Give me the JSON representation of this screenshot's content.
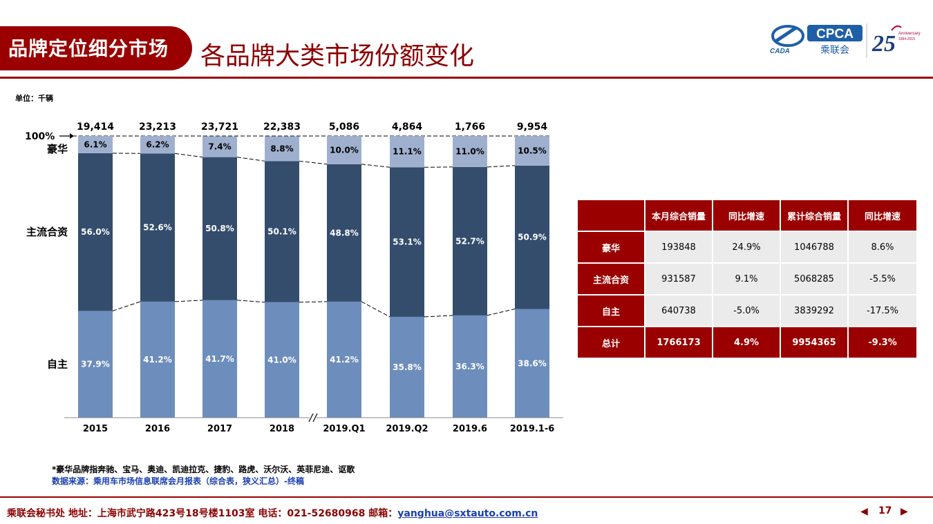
{
  "header": {
    "section_tag": "品牌定位细分市场",
    "title": "各品牌大类市场份额变化",
    "logo_cpca_text": "CPCA",
    "logo_cpca_sub": "乘联会",
    "logo_cada_text": "CADA",
    "logo_anniv_number": "25",
    "logo_anniv_text": "Anniversary",
    "logo_anniv_years": "1994-2019",
    "colors": {
      "brand_red": "#9a0000",
      "title_red": "#8b0000"
    }
  },
  "unit_label": "单位：千辆",
  "chart_data": {
    "type": "bar",
    "stacked": true,
    "normalized": true,
    "categories": [
      "2015",
      "2016",
      "2017",
      "2018",
      "2019.Q1",
      "2019.Q2",
      "2019.6",
      "2019.1-6"
    ],
    "totals": [
      "19,414",
      "23,213",
      "23,721",
      "22,383",
      "5,086",
      "4,864",
      "1,766",
      "9,954"
    ],
    "series": [
      {
        "name": "自主",
        "values": [
          37.9,
          41.2,
          41.7,
          41.0,
          41.2,
          35.8,
          36.3,
          38.6
        ],
        "color": "#6d8ebc"
      },
      {
        "name": "主流合资",
        "values": [
          56.0,
          52.6,
          50.8,
          50.1,
          48.8,
          53.1,
          52.7,
          50.9
        ],
        "color": "#344d6d"
      },
      {
        "name": "豪华",
        "values": [
          6.1,
          6.2,
          7.4,
          8.8,
          10.0,
          11.1,
          11.0,
          10.5
        ],
        "color": "#9fb0cf"
      }
    ],
    "top_marker": "100%",
    "axis_break_after": "2018",
    "ylim": [
      0,
      100
    ]
  },
  "table": {
    "headers": [
      "",
      "本月综合销量",
      "同比增速",
      "累计综合销量",
      "同比增速"
    ],
    "rows": [
      {
        "label": "豪华",
        "cells": [
          "193848",
          "24.9%",
          "1046788",
          "8.6%"
        ]
      },
      {
        "label": "主流合资",
        "cells": [
          "931587",
          "9.1%",
          "5068285",
          "-5.5%"
        ]
      },
      {
        "label": "自主",
        "cells": [
          "640738",
          "-5.0%",
          "3839292",
          "-17.5%"
        ]
      },
      {
        "label": "总计",
        "cells": [
          "1766173",
          "4.9%",
          "9954365",
          "-9.3%"
        ]
      }
    ]
  },
  "footnote": "*豪华品牌指奔驰、宝马、奥迪、凯迪拉克、捷豹、路虎、沃尔沃、英菲尼迪、讴歌",
  "source": "数据来源：乘用车市场信息联席会月报表（综合表，狭义汇总）-终稿",
  "footer": {
    "text": "乘联会秘书处   地址：上海市武宁路423号18号楼1103室  电话：021-52680968   邮箱：",
    "email": "yanghua@sxtauto.com.cn",
    "page": "17"
  }
}
